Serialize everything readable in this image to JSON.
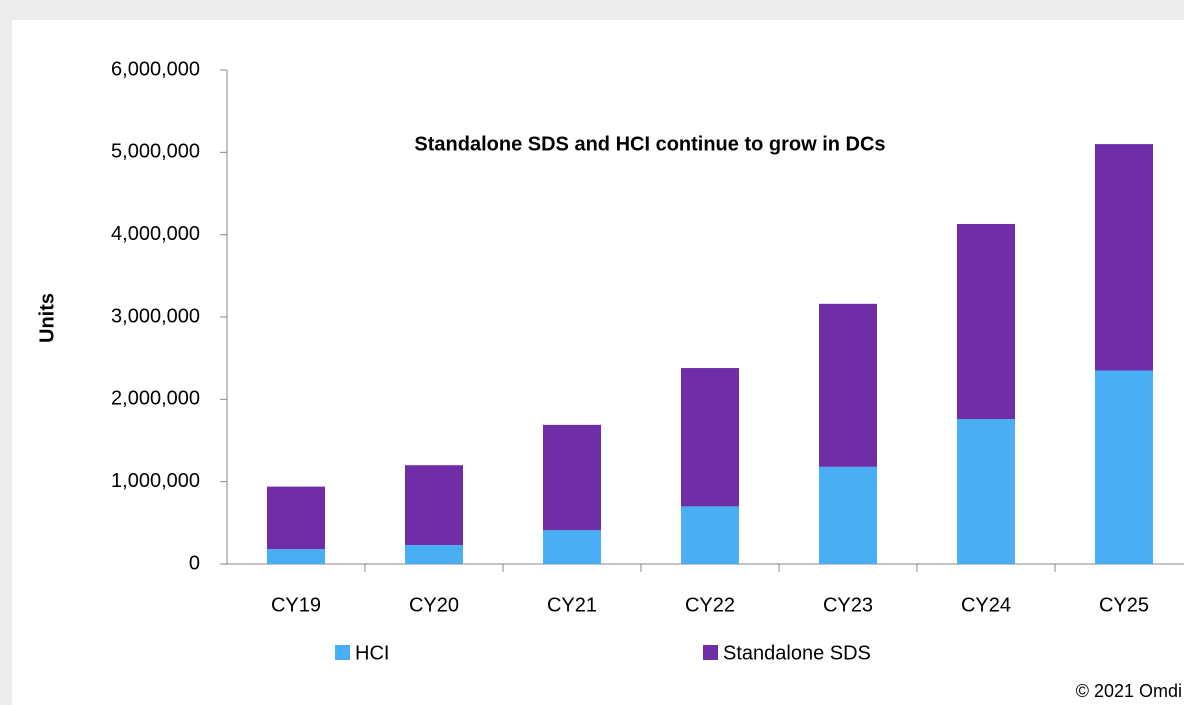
{
  "chart_data": {
    "type": "stacked_bar",
    "title": "Standalone SDS and HCI continue to grow in DCs",
    "y_label": "Units",
    "categories": [
      "CY19",
      "CY20",
      "CY21",
      "CY22",
      "CY23",
      "CY24",
      "CY25"
    ],
    "series": [
      {
        "name": "HCI",
        "color": "#4aaef5",
        "values": [
          180000,
          230000,
          410000,
          700000,
          1180000,
          1760000,
          2350000
        ]
      },
      {
        "name": "Standalone SDS",
        "color": "#6f2da8",
        "values": [
          760000,
          970000,
          1280000,
          1680000,
          1980000,
          2370000,
          2750000
        ]
      }
    ],
    "ylim": [
      0,
      6000000
    ],
    "yticks": [
      0,
      {
        "value": 1000000,
        "label": "1,000,000"
      },
      {
        "value": 2000000,
        "label": "2,000,000"
      },
      {
        "value": 3000000,
        "label": "3,000,000"
      },
      {
        "value": 4000000,
        "label": "4,000,000"
      },
      {
        "value": 5000000,
        "label": "5,000,000"
      },
      {
        "value": 6000000,
        "label": "6,000,000"
      }
    ],
    "grid": false,
    "legend": "bottom",
    "source": "© 2021 Omdi"
  }
}
